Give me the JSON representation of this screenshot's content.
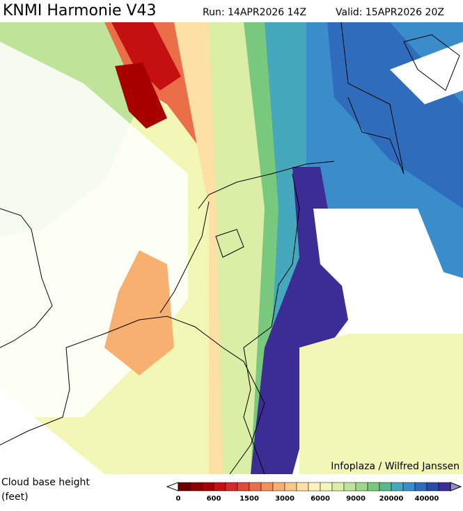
{
  "header": {
    "title": "KNMI Harmonie V43",
    "run": "Run: 14APR2026 14Z",
    "valid": "Valid: 15APR2026 20Z"
  },
  "credit": "Infoplaza / Wilfred Janssen",
  "legend": {
    "label_line1": "Cloud base height",
    "label_line2": "(feet)",
    "ticks": [
      0,
      600,
      1500,
      3000,
      6000,
      9000,
      20000,
      40000
    ],
    "colors": [
      "#6e0000",
      "#8c0000",
      "#a80000",
      "#c41010",
      "#d42a2a",
      "#e04a3a",
      "#ea6e48",
      "#f2915a",
      "#f7b070",
      "#fac98a",
      "#fde0a6",
      "#fff3bd",
      "#f2f7b5",
      "#dbeea6",
      "#c0e39a",
      "#9fd68c",
      "#78c87e",
      "#58b98c",
      "#46a8bd",
      "#3a8ccb",
      "#2f6cbc",
      "#2a4aa8",
      "#3c2d94"
    ]
  }
}
